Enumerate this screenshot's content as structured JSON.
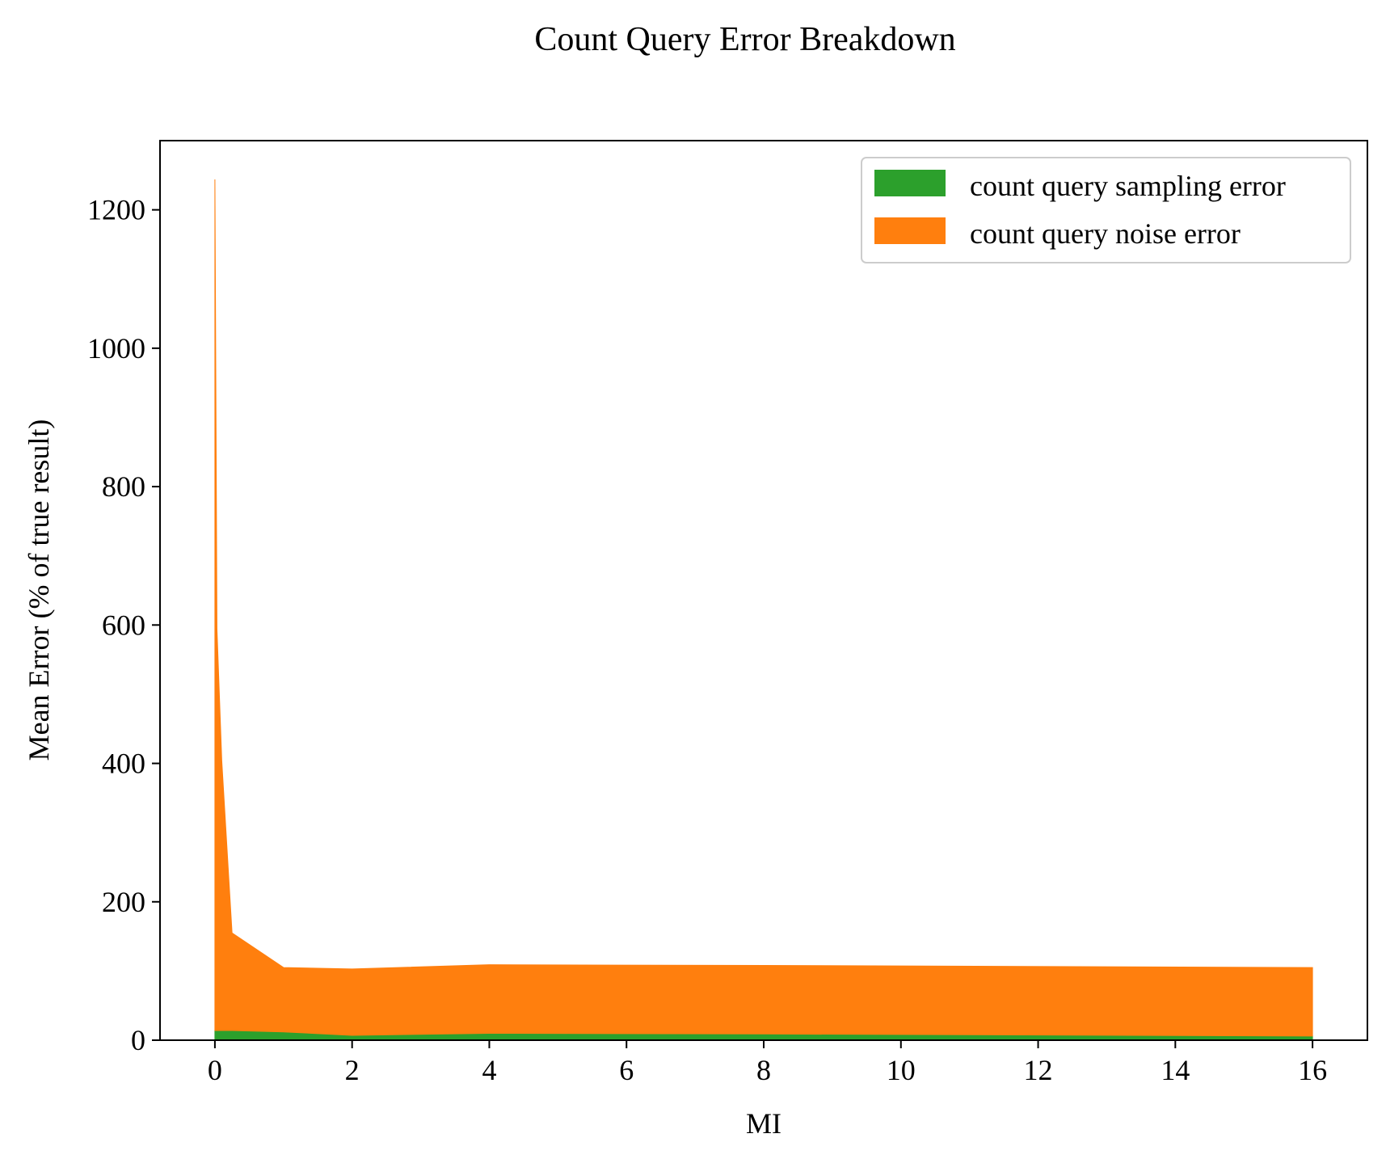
{
  "chart_data": {
    "type": "area",
    "stacked": true,
    "title": "Count Query Error Breakdown",
    "xlabel": "MI",
    "ylabel": "Mean Error (% of true result)",
    "xlim": [
      -0.8,
      16.8
    ],
    "ylim": [
      0,
      1300
    ],
    "xticks": [
      0,
      2,
      4,
      6,
      8,
      10,
      12,
      14,
      16
    ],
    "yticks": [
      0,
      200,
      400,
      600,
      800,
      1000,
      1200
    ],
    "grid": false,
    "legend_position": "top-right",
    "x": [
      0.0,
      0.03,
      0.1,
      0.25,
      1,
      2,
      4,
      8,
      16
    ],
    "series": [
      {
        "name": "count query sampling error",
        "color": "#2ca02c",
        "values": [
          14,
          14,
          14,
          14,
          12,
          7,
          10,
          9,
          6
        ]
      },
      {
        "name": "count query noise error",
        "color": "#ff7f0e",
        "values": [
          1230,
          580,
          390,
          141,
          93,
          96,
          99,
          99,
          99
        ]
      }
    ]
  }
}
